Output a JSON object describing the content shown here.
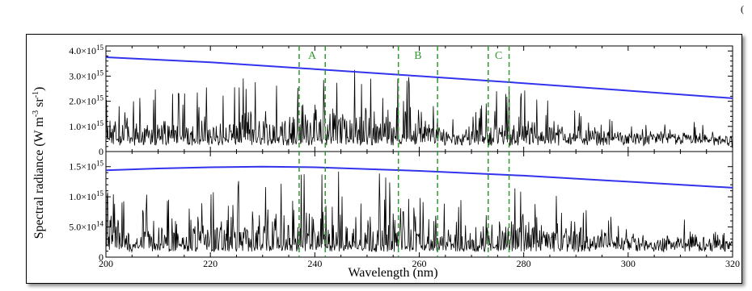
{
  "corner_mark": "(",
  "chart_data": [
    {
      "type": "line",
      "panel": "top",
      "xlim": [
        200,
        320
      ],
      "ylim": [
        0,
        4200000000000000.0
      ],
      "y_ticks": [
        {
          "value": 0,
          "label": "0"
        },
        {
          "value": 1000000000000000.0,
          "label": "1.0×10",
          "exp": "15"
        },
        {
          "value": 2000000000000000.0,
          "label": "2.0×10",
          "exp": "15"
        },
        {
          "value": 3000000000000000.0,
          "label": "3.0×10",
          "exp": "15"
        },
        {
          "value": 4000000000000000.0,
          "label": "4.0×10",
          "exp": "15"
        }
      ],
      "series": [
        {
          "color": "#000000",
          "kind": "spectrum",
          "baseline": 600000000000000.0,
          "envelope": [
            [
              200,
              2400000000000000.0
            ],
            [
              220,
              2600000000000000.0
            ],
            [
              236,
              3500000000000000.0
            ],
            [
              250,
              3300000000000000.0
            ],
            [
              258,
              3000000000000000.0
            ],
            [
              264,
              1800000000000000.0
            ],
            [
              272,
              1900000000000000.0
            ],
            [
              276,
              2900000000000000.0
            ],
            [
              285,
              2100000000000000.0
            ],
            [
              295,
              1400000000000000.0
            ],
            [
              305,
              1000000000000000.0
            ],
            [
              312,
              1300000000000000.0
            ],
            [
              320,
              600000000000000.0
            ]
          ]
        },
        {
          "color": "#3333ee",
          "kind": "line",
          "x": [
            200,
            220,
            240,
            260,
            280,
            300,
            320
          ],
          "y": [
            3750000000000000.0,
            3550000000000000.0,
            3280000000000000.0,
            3000000000000000.0,
            2720000000000000.0,
            2420000000000000.0,
            2120000000000000.0
          ]
        }
      ]
    },
    {
      "type": "line",
      "panel": "bottom",
      "xlim": [
        200,
        320
      ],
      "ylim": [
        0,
        1750000000000000.0
      ],
      "y_ticks": [
        {
          "value": 0,
          "label": "0"
        },
        {
          "value": 500000000000000.0,
          "label": "5.0×10",
          "exp": "14"
        },
        {
          "value": 1000000000000000.0,
          "label": "1.0×10",
          "exp": "15"
        },
        {
          "value": 1500000000000000.0,
          "label": "1.5×10",
          "exp": "15"
        }
      ],
      "series": [
        {
          "color": "#000000",
          "kind": "spectrum",
          "baseline": 220000000000000.0,
          "envelope": [
            [
              200,
              1100000000000000.0
            ],
            [
              220,
              1300000000000000.0
            ],
            [
              236,
              1500000000000000.0
            ],
            [
              250,
              1450000000000000.0
            ],
            [
              258,
              1400000000000000.0
            ],
            [
              264,
              900000000000000.0
            ],
            [
              272,
              1000000000000000.0
            ],
            [
              276,
              1500000000000000.0
            ],
            [
              285,
              1100000000000000.0
            ],
            [
              295,
              800000000000000.0
            ],
            [
              305,
              550000000000000.0
            ],
            [
              312,
              800000000000000.0
            ],
            [
              320,
              350000000000000.0
            ]
          ]
        },
        {
          "color": "#3333ee",
          "kind": "line",
          "x": [
            200,
            210,
            220,
            230,
            240,
            260,
            280,
            300,
            320
          ],
          "y": [
            1440000000000000.0,
            1470000000000000.0,
            1490000000000000.0,
            1500000000000000.0,
            1490000000000000.0,
            1430000000000000.0,
            1350000000000000.0,
            1250000000000000.0,
            1150000000000000.0
          ]
        }
      ]
    }
  ],
  "x_ticks": [
    200,
    220,
    240,
    260,
    280,
    300,
    320
  ],
  "xlabel": "Wavelength (nm)",
  "ylabel": "Spectral radiance (W m",
  "ylabel_parts": [
    "Spectral radiance (W m",
    "-3",
    " sr",
    "-1",
    ")"
  ],
  "regions": [
    {
      "label": "A",
      "x1": 237,
      "x2": 242
    },
    {
      "label": "B",
      "x1": 256,
      "x2": 263.5
    },
    {
      "label": "C",
      "x1": 273.2,
      "x2": 277.2
    }
  ],
  "colors": {
    "spectrum": "#000000",
    "fit": "#3333ee",
    "regions": "#2e9a2e"
  }
}
